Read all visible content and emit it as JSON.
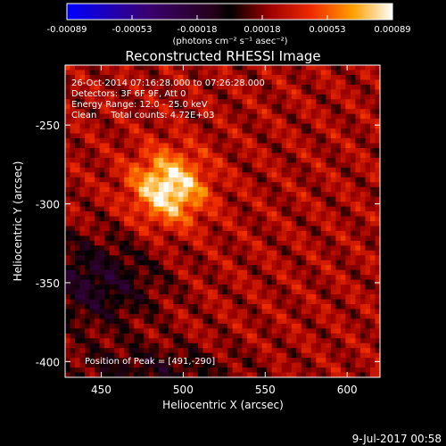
{
  "chart_data": {
    "type": "heatmap",
    "title": "Reconstructed RHESSI Image",
    "xlabel": "Heliocentric X (arcsec)",
    "ylabel": "Heliocentric Y (arcsec)",
    "xlim": [
      428,
      620
    ],
    "ylim": [
      -410,
      -212
    ],
    "x_ticks": [
      450,
      500,
      550,
      600
    ],
    "y_ticks": [
      -250,
      -300,
      -350,
      -400
    ],
    "colorbar": {
      "min": -0.00089,
      "max": 0.00089,
      "ticks": [
        "-0.00089",
        "-0.00053",
        "-0.00018",
        "0.00018",
        "0.00053",
        "0.00089"
      ],
      "units": "(photons cm⁻² s⁻¹ asec⁻²)"
    },
    "annotations": {
      "time_range": "26-Oct-2014 07:16:28.000 to 07:26:28.000",
      "detectors": "Detectors: 3F 6F 9F, Att 0",
      "energy": "Energy Range: 12.0 - 25.0 keV",
      "clean": "Clean     Total counts: 4.72E+03",
      "peak": "Position of Peak = [491,-290]"
    },
    "peak": {
      "x": 491,
      "y": -290
    },
    "timestamp": "9-Jul-2017 00:58"
  }
}
